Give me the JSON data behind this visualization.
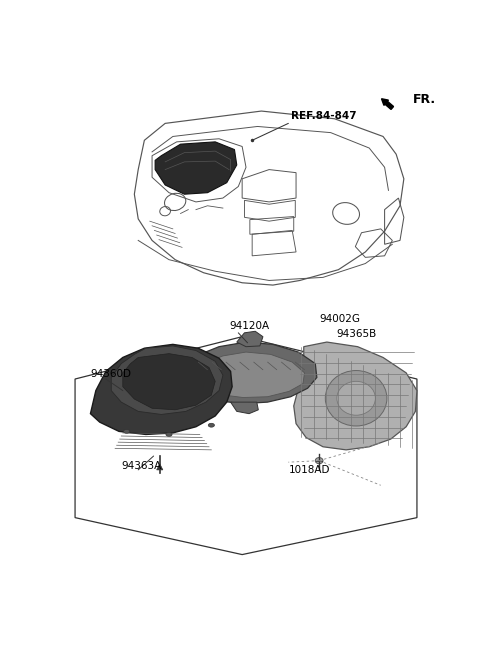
{
  "bg_color": "#ffffff",
  "fig_width": 4.8,
  "fig_height": 6.56,
  "dpi": 100,
  "labels": {
    "FR": {
      "text": "FR.",
      "fontsize": 9,
      "fontweight": "bold"
    },
    "REF84847": {
      "text": "REF.84-847",
      "fontsize": 7.5,
      "fontweight": "bold"
    },
    "94002G": {
      "text": "94002G",
      "fontsize": 7.5
    },
    "94365B": {
      "text": "94365B",
      "fontsize": 7.5
    },
    "94120A": {
      "text": "94120A",
      "fontsize": 7.5
    },
    "94360D": {
      "text": "94360D",
      "fontsize": 7.5
    },
    "94363A": {
      "text": "94363A",
      "fontsize": 7.5
    },
    "1018AD": {
      "text": "1018AD",
      "fontsize": 7.5
    }
  },
  "colors": {
    "outline": "#555555",
    "outline_dark": "#333333",
    "part_dark": "#2a2a2a",
    "part_mid": "#606060",
    "part_light": "#909090",
    "part_lighter": "#aaaaaa",
    "grid_line": "#777777",
    "white": "#ffffff",
    "black": "#000000",
    "cover_face": "#3a3a3a",
    "cover_reflect": "#505050",
    "bezel_dark": "#404040",
    "pcb_body": "#787878",
    "pcb_grid": "#909090"
  }
}
